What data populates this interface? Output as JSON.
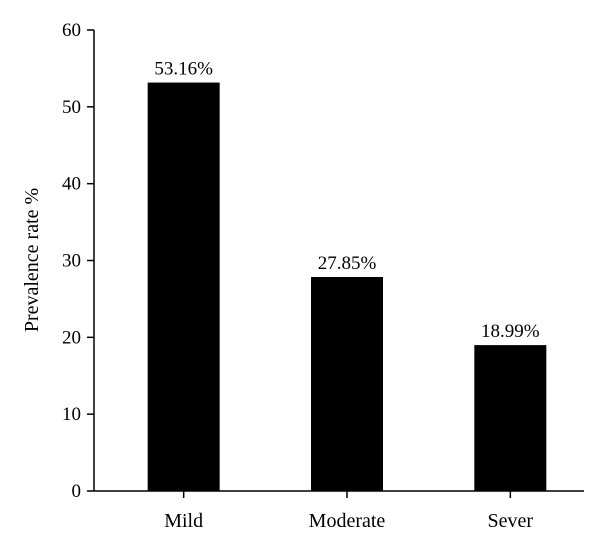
{
  "chart_data": {
    "type": "bar",
    "categories": [
      "Mild",
      "Moderate",
      "Sever"
    ],
    "values": [
      53.16,
      27.85,
      18.99
    ],
    "data_labels": [
      "53.16%",
      "27.85%",
      "18.99%"
    ],
    "ylabel": "Prevalence rate %",
    "xlabel": "",
    "ylim": [
      0,
      60
    ],
    "yticks": [
      0,
      10,
      20,
      30,
      40,
      50,
      60
    ],
    "grid": false,
    "bar_color": "#000000"
  }
}
